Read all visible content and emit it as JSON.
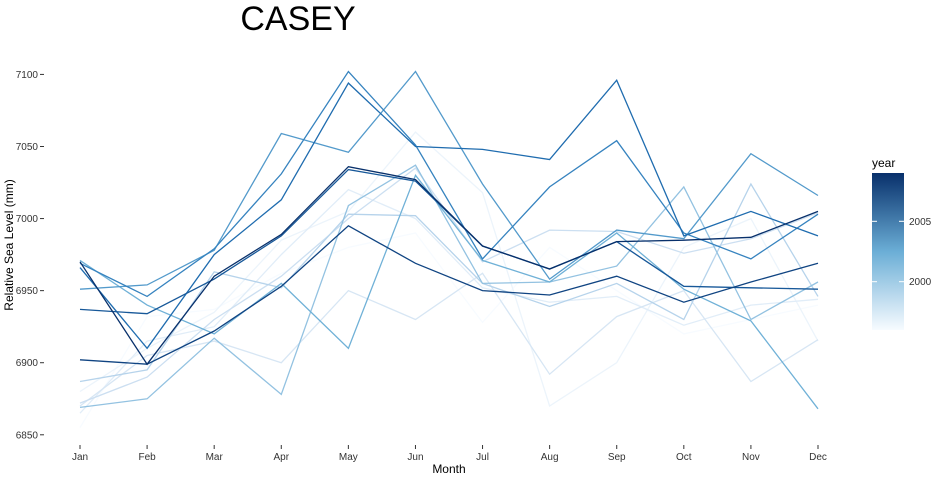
{
  "chart_data": {
    "type": "line",
    "title": "CASEY",
    "xlabel": "Month",
    "ylabel": "Relative Sea Level (mm)",
    "categories": [
      "Jan",
      "Feb",
      "Mar",
      "Apr",
      "May",
      "Jun",
      "Jul",
      "Aug",
      "Sep",
      "Oct",
      "Nov",
      "Dec"
    ],
    "ylim": [
      6845,
      7110
    ],
    "yticks": [
      6850,
      6900,
      6950,
      7000,
      7050,
      7100
    ],
    "grid": false,
    "legend": {
      "title": "year",
      "placement": "right",
      "type": "gradient",
      "range": [
        1996,
        2009
      ],
      "ticks": [
        2000,
        2005
      ],
      "color_low": "#f7fbff",
      "color_high": "#08306b"
    },
    "series": [
      {
        "year": 1996,
        "values": [
          6855,
          6932,
          6937,
          6962,
          6980,
          6990,
          6928,
          6980,
          6950,
          6920,
          6930,
          6940
        ]
      },
      {
        "year": 1997,
        "values": [
          6880,
          6910,
          6935,
          6985,
          7005,
          7060,
          7018,
          6870,
          6900,
          6980,
          7000,
          6915
        ]
      },
      {
        "year": 1998,
        "values": [
          6865,
          6915,
          6925,
          6975,
          7020,
          7000,
          6952,
          6942,
          6946,
          6926,
          6940,
          6944
        ]
      },
      {
        "year": 1999,
        "values": [
          6870,
          6905,
          6915,
          6900,
          6950,
          6930,
          6962,
          6892,
          6932,
          6950,
          6887,
          6916
        ]
      },
      {
        "year": 2000,
        "values": [
          6872,
          6890,
          6930,
          6960,
          7000,
          7035,
          6970,
          6992,
          6991,
          6976,
          6986,
          7004
        ]
      },
      {
        "year": 2001,
        "values": [
          6887,
          6895,
          6963,
          6952,
          7003,
          7002,
          6955,
          6939,
          6955,
          6930,
          7024,
          6946
        ]
      },
      {
        "year": 2002,
        "values": [
          6869,
          6875,
          6917,
          6878,
          7009,
          7037,
          6955,
          6956,
          6967,
          7022,
          6930,
          6956
        ]
      },
      {
        "year": 2003,
        "values": [
          6971,
          6940,
          6920,
          6955,
          6910,
          7030,
          6971,
          6956,
          6990,
          6951,
          6929,
          6868
        ]
      },
      {
        "year": 2004,
        "values": [
          6951,
          6954,
          6978,
          7059,
          7046,
          7102,
          7024,
          6958,
          6992,
          6986,
          7045,
          7016
        ]
      },
      {
        "year": 2005,
        "values": [
          6969,
          6946,
          6979,
          7031,
          7102,
          7051,
          6972,
          7022,
          7054,
          6990,
          6972,
          7003
        ]
      },
      {
        "year": 2006,
        "values": [
          6966,
          6910,
          6975,
          7013,
          7094,
          7050,
          7048,
          7041,
          7096,
          6988,
          7005,
          6988
        ]
      },
      {
        "year": 2007,
        "values": [
          6937,
          6934,
          6958,
          6988,
          7034,
          7026,
          6981,
          6965,
          6984,
          6953,
          6952,
          6951
        ]
      },
      {
        "year": 2008,
        "values": [
          6902,
          6899,
          6922,
          6953,
          6995,
          6969,
          6950,
          6947,
          6960,
          6942,
          6956,
          6969
        ]
      },
      {
        "year": 2009,
        "values": [
          6970,
          6899,
          6960,
          6989,
          7036,
          7027,
          6981,
          6965,
          6984,
          6985,
          6987,
          7005
        ]
      }
    ]
  }
}
